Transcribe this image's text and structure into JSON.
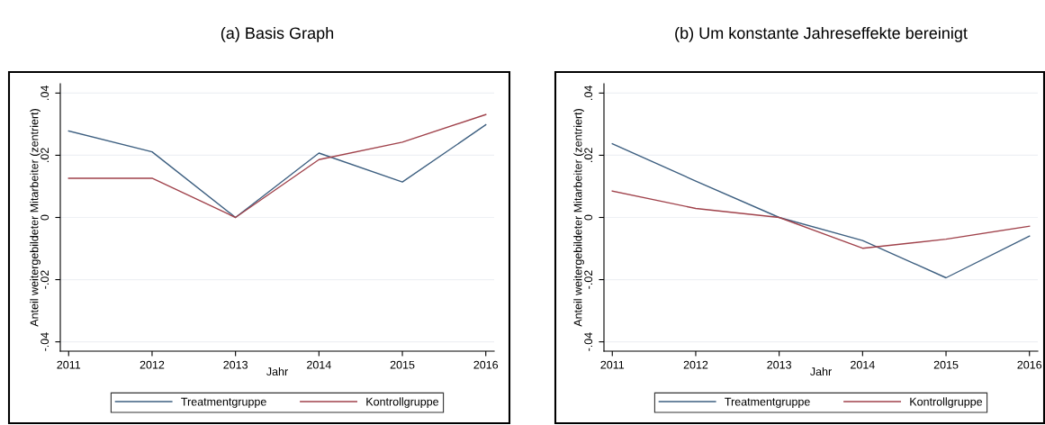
{
  "chart_data": [
    {
      "type": "line",
      "title": "(a) Basis Graph",
      "xlabel": "Jahr",
      "ylabel": "Anteil weitergebildeter Mitarbeiter (zentriert)",
      "x": [
        2011,
        2012,
        2013,
        2014,
        2015,
        2016
      ],
      "series": [
        {
          "name": "Treatmentgruppe",
          "color": "#3d5f80",
          "values": [
            0.0278,
            0.0211,
            0.0,
            0.0207,
            0.0114,
            0.0298
          ]
        },
        {
          "name": "Kontrollgruppe",
          "color": "#a0424b",
          "values": [
            0.0126,
            0.0126,
            0.0,
            0.0186,
            0.0242,
            0.0331
          ]
        }
      ],
      "xlim": [
        2010.9,
        2016.1
      ],
      "xticks": [
        2011,
        2012,
        2013,
        2014,
        2015,
        2016
      ],
      "ylim": [
        -0.043,
        0.043
      ],
      "yticks": [
        {
          "value": -0.04,
          "label": "-.04"
        },
        {
          "value": -0.02,
          "label": "-.02"
        },
        0,
        {
          "value": 0.02,
          "label": ".02"
        },
        {
          "value": 0.04,
          "label": ".04"
        }
      ],
      "grid": "y",
      "legend": "bottom",
      "marker": "none",
      "line_style": "solid"
    },
    {
      "type": "line",
      "title": "(b) Um konstante Jahreseffekte bereinigt",
      "xlabel": "Jahr",
      "ylabel": "Anteil weitergebildeter Mitarbeiter (zentriert)",
      "x": [
        2011,
        2012,
        2013,
        2014,
        2015,
        2016
      ],
      "series": [
        {
          "name": "Treatmentgruppe",
          "color": "#3d5f80",
          "values": [
            0.0237,
            0.0117,
            0.0,
            -0.0074,
            -0.0194,
            -0.006
          ]
        },
        {
          "name": "Kontrollgruppe",
          "color": "#a0424b",
          "values": [
            0.0085,
            0.0029,
            0.0,
            -0.0099,
            -0.007,
            -0.0028
          ]
        }
      ],
      "xlim": [
        2010.9,
        2016.1
      ],
      "xticks": [
        2011,
        2012,
        2013,
        2014,
        2015,
        2016
      ],
      "ylim": [
        -0.043,
        0.043
      ],
      "yticks": [
        {
          "value": -0.04,
          "label": "-.04"
        },
        {
          "value": -0.02,
          "label": "-.02"
        },
        0,
        {
          "value": 0.02,
          "label": ".02"
        },
        {
          "value": 0.04,
          "label": ".04"
        }
      ],
      "grid": "y",
      "legend": "bottom",
      "marker": "none",
      "line_style": "solid"
    }
  ]
}
